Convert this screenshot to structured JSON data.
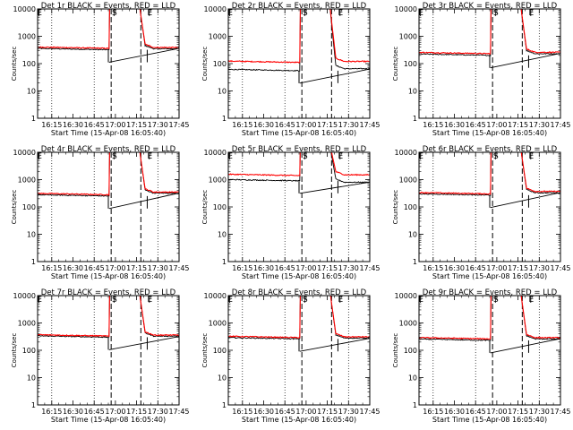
{
  "figure": {
    "xlabel": "Start Time (15-Apr-08 16:05:40)",
    "ylabel": "Counts/sec",
    "x_tick_labels": [
      "16:15",
      "16:30",
      "16:45",
      "17:00",
      "17:15",
      "17:30",
      "17:45"
    ],
    "y_tick_labels": [
      "1",
      "10",
      "100",
      "1000",
      "10000"
    ],
    "markers": [
      {
        "label": "E",
        "time": "16:06"
      },
      {
        "label": "S",
        "time": "16:59"
      },
      {
        "label": "E",
        "time": "17:24"
      }
    ],
    "colors": {
      "events": "#000000",
      "lld": "#ff0000"
    }
  },
  "chart_data": [
    {
      "type": "line",
      "title": "Det 1r BLACK = Events, RED = LLD",
      "xlabel": "Start Time (15-Apr-08 16:05:40)",
      "ylabel": "Counts/sec",
      "x_unit": "minutes after 16:00",
      "x_range": [
        5,
        105
      ],
      "y_scale": "log",
      "ylim": [
        1,
        10000
      ],
      "grid": "vertical dotted",
      "legend": "in title",
      "saa_window": [
        57,
        81
      ],
      "dashed_lines_at": [
        "16:57",
        "17:18"
      ],
      "dotted_lines_at": [
        "16:15",
        "16:45",
        "17:30"
      ],
      "series": [
        {
          "name": "Events",
          "color": "#000000",
          "baseline_before": 320,
          "baseline_after": 350
        },
        {
          "name": "LLD",
          "color": "#ff0000",
          "baseline_before": 360,
          "baseline_after": 390
        }
      ]
    },
    {
      "type": "line",
      "title": "Det 2r BLACK = Events, RED = LLD",
      "xlabel": "Start Time (15-Apr-08 16:05:40)",
      "ylabel": "Counts/sec",
      "x_unit": "minutes after 16:00",
      "x_range": [
        5,
        105
      ],
      "y_scale": "log",
      "ylim": [
        1,
        10000
      ],
      "grid": "vertical dotted",
      "legend": "in title",
      "saa_window": [
        57,
        81
      ],
      "dashed_lines_at": [
        "16:57",
        "17:18"
      ],
      "dotted_lines_at": [
        "16:15",
        "16:45",
        "17:30"
      ],
      "series": [
        {
          "name": "Events",
          "color": "#000000",
          "baseline_before": 55,
          "baseline_after": 65
        },
        {
          "name": "LLD",
          "color": "#ff0000",
          "baseline_before": 110,
          "baseline_after": 120
        }
      ]
    },
    {
      "type": "line",
      "title": "Det 3r BLACK = Events, RED = LLD",
      "xlabel": "Start Time (15-Apr-08 16:05:40)",
      "ylabel": "Counts/sec",
      "x_unit": "minutes after 16:00",
      "x_range": [
        5,
        105
      ],
      "y_scale": "log",
      "ylim": [
        1,
        10000
      ],
      "grid": "vertical dotted",
      "legend": "in title",
      "saa_window": [
        57,
        81
      ],
      "dashed_lines_at": [
        "16:57",
        "17:18"
      ],
      "dotted_lines_at": [
        "16:15",
        "16:45",
        "17:30"
      ],
      "series": [
        {
          "name": "Events",
          "color": "#000000",
          "baseline_before": 200,
          "baseline_after": 230
        },
        {
          "name": "LLD",
          "color": "#ff0000",
          "baseline_before": 230,
          "baseline_after": 260
        }
      ]
    },
    {
      "type": "line",
      "title": "Det 4r BLACK = Events, RED = LLD",
      "xlabel": "Start Time (15-Apr-08 16:05:40)",
      "ylabel": "Counts/sec",
      "x_unit": "minutes after 16:00",
      "x_range": [
        5,
        105
      ],
      "y_scale": "log",
      "ylim": [
        1,
        10000
      ],
      "grid": "vertical dotted",
      "legend": "in title",
      "saa_window": [
        57,
        81
      ],
      "dashed_lines_at": [
        "16:57",
        "17:18"
      ],
      "dotted_lines_at": [
        "16:15",
        "16:45",
        "17:30"
      ],
      "series": [
        {
          "name": "Events",
          "color": "#000000",
          "baseline_before": 250,
          "baseline_after": 320
        },
        {
          "name": "LLD",
          "color": "#ff0000",
          "baseline_before": 280,
          "baseline_after": 350
        }
      ]
    },
    {
      "type": "line",
      "title": "Det 5r BLACK = Events, RED = LLD",
      "xlabel": "Start Time (15-Apr-08 16:05:40)",
      "ylabel": "Counts/sec",
      "x_unit": "minutes after 16:00",
      "x_range": [
        5,
        105
      ],
      "y_scale": "log",
      "ylim": [
        1,
        10000
      ],
      "grid": "vertical dotted",
      "legend": "in title",
      "saa_window": [
        57,
        81
      ],
      "dashed_lines_at": [
        "16:57",
        "17:18"
      ],
      "dotted_lines_at": [
        "16:15",
        "16:45",
        "17:30"
      ],
      "series": [
        {
          "name": "Events",
          "color": "#000000",
          "baseline_before": 900,
          "baseline_after": 800
        },
        {
          "name": "LLD",
          "color": "#ff0000",
          "baseline_before": 1400,
          "baseline_after": 1500
        }
      ]
    },
    {
      "type": "line",
      "title": "Det 6r BLACK = Events, RED = LLD",
      "xlabel": "Start Time (15-Apr-08 16:05:40)",
      "ylabel": "Counts/sec",
      "x_unit": "minutes after 16:00",
      "x_range": [
        5,
        105
      ],
      "y_scale": "log",
      "ylim": [
        1,
        10000
      ],
      "grid": "vertical dotted",
      "legend": "in title",
      "saa_window": [
        57,
        81
      ],
      "dashed_lines_at": [
        "16:57",
        "17:18"
      ],
      "dotted_lines_at": [
        "16:15",
        "16:45",
        "17:30"
      ],
      "series": [
        {
          "name": "Events",
          "color": "#000000",
          "baseline_before": 270,
          "baseline_after": 330
        },
        {
          "name": "LLD",
          "color": "#ff0000",
          "baseline_before": 300,
          "baseline_after": 370
        }
      ]
    },
    {
      "type": "line",
      "title": "Det 7r BLACK = Events, RED = LLD",
      "xlabel": "Start Time (15-Apr-08 16:05:40)",
      "ylabel": "Counts/sec",
      "x_unit": "minutes after 16:00",
      "x_range": [
        5,
        105
      ],
      "y_scale": "log",
      "ylim": [
        1,
        10000
      ],
      "grid": "vertical dotted",
      "legend": "in title",
      "saa_window": [
        57,
        81
      ],
      "dashed_lines_at": [
        "16:57",
        "17:18"
      ],
      "dotted_lines_at": [
        "16:15",
        "16:45",
        "17:30"
      ],
      "series": [
        {
          "name": "Events",
          "color": "#000000",
          "baseline_before": 300,
          "baseline_after": 330
        },
        {
          "name": "LLD",
          "color": "#ff0000",
          "baseline_before": 330,
          "baseline_after": 360
        }
      ]
    },
    {
      "type": "line",
      "title": "Det 8r BLACK = Events, RED = LLD",
      "xlabel": "Start Time (15-Apr-08 16:05:40)",
      "ylabel": "Counts/sec",
      "x_unit": "minutes after 16:00",
      "x_range": [
        5,
        105
      ],
      "y_scale": "log",
      "ylim": [
        1,
        10000
      ],
      "grid": "vertical dotted",
      "legend": "in title",
      "saa_window": [
        57,
        81
      ],
      "dashed_lines_at": [
        "16:57",
        "17:18"
      ],
      "dotted_lines_at": [
        "16:15",
        "16:45",
        "17:30"
      ],
      "series": [
        {
          "name": "Events",
          "color": "#000000",
          "baseline_before": 260,
          "baseline_after": 280
        },
        {
          "name": "LLD",
          "color": "#ff0000",
          "baseline_before": 290,
          "baseline_after": 310
        }
      ]
    },
    {
      "type": "line",
      "title": "Det 9r BLACK = Events, RED = LLD",
      "xlabel": "Start Time (15-Apr-08 16:05:40)",
      "ylabel": "Counts/sec",
      "x_unit": "minutes after 16:00",
      "x_range": [
        5,
        105
      ],
      "y_scale": "log",
      "ylim": [
        1,
        10000
      ],
      "grid": "vertical dotted",
      "legend": "in title",
      "saa_window": [
        57,
        81
      ],
      "dashed_lines_at": [
        "16:57",
        "17:18"
      ],
      "dotted_lines_at": [
        "16:15",
        "16:45",
        "17:30"
      ],
      "series": [
        {
          "name": "Events",
          "color": "#000000",
          "baseline_before": 230,
          "baseline_after": 260
        },
        {
          "name": "LLD",
          "color": "#ff0000",
          "baseline_before": 260,
          "baseline_after": 290
        }
      ]
    }
  ]
}
